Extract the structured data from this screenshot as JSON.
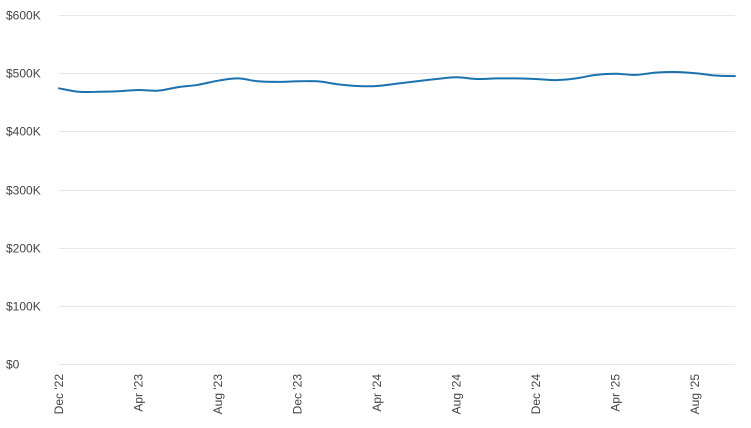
{
  "chart_data": {
    "type": "line",
    "title": "",
    "xlabel": "",
    "ylabel": "",
    "ylim": [
      0,
      600000
    ],
    "grid": true,
    "legend": "none",
    "y_ticks": [
      {
        "value": 0,
        "label": "$0"
      },
      {
        "value": 100000,
        "label": "$100K"
      },
      {
        "value": 200000,
        "label": "$200K"
      },
      {
        "value": 300000,
        "label": "$300K"
      },
      {
        "value": 400000,
        "label": "$400K"
      },
      {
        "value": 500000,
        "label": "$500K"
      },
      {
        "value": 600000,
        "label": "$600K"
      }
    ],
    "x_ticks": [
      {
        "x": "2022-12",
        "label": "Dec '22"
      },
      {
        "x": "2023-04",
        "label": "Apr '23"
      },
      {
        "x": "2023-08",
        "label": "Aug '23"
      },
      {
        "x": "2023-12",
        "label": "Dec '23"
      },
      {
        "x": "2024-04",
        "label": "Apr '24"
      },
      {
        "x": "2024-08",
        "label": "Aug '24"
      },
      {
        "x": "2024-12",
        "label": "Dec '24"
      },
      {
        "x": "2025-04",
        "label": "Apr '25"
      },
      {
        "x": "2025-08",
        "label": "Aug '25"
      }
    ],
    "x": [
      "2022-12",
      "2023-01",
      "2023-02",
      "2023-03",
      "2023-04",
      "2023-05",
      "2023-06",
      "2023-07",
      "2023-08",
      "2023-09",
      "2023-10",
      "2023-11",
      "2023-12",
      "2024-01",
      "2024-02",
      "2024-03",
      "2024-04",
      "2024-05",
      "2024-06",
      "2024-07",
      "2024-08",
      "2024-09",
      "2024-10",
      "2024-11",
      "2024-12",
      "2025-01",
      "2025-02",
      "2025-03",
      "2025-04",
      "2025-05",
      "2025-06",
      "2025-07",
      "2025-08",
      "2025-09",
      "2025-10"
    ],
    "series": [
      {
        "color": "#1a73b0",
        "values": [
          474000,
          468000,
          468000,
          469000,
          471000,
          470000,
          476000,
          480000,
          487000,
          491000,
          486000,
          485000,
          486000,
          486000,
          481000,
          478000,
          478000,
          482000,
          486000,
          490000,
          493000,
          490000,
          491000,
          491000,
          490000,
          488000,
          491000,
          497000,
          499000,
          497000,
          501000,
          502000,
          500000,
          496000,
          495000
        ]
      }
    ]
  }
}
